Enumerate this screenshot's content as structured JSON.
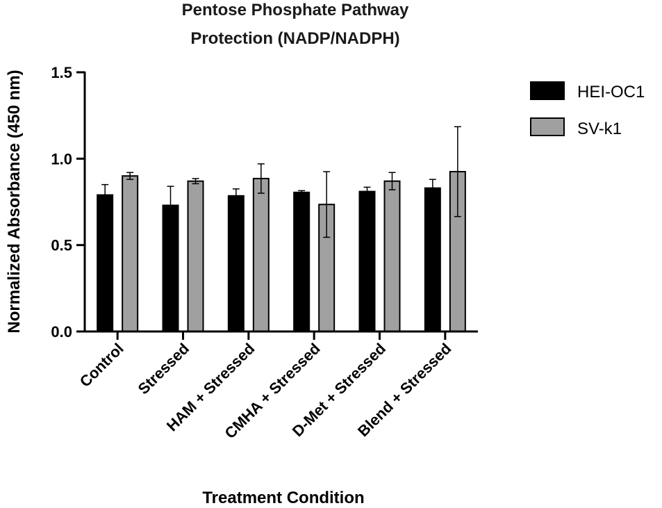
{
  "chart_data": {
    "type": "bar",
    "title": "Pentose Phosphate Pathway Protection (NADP/NADPH)",
    "title_lines": [
      "Pentose Phosphate Pathway",
      "Protection (NADP/NADPH)"
    ],
    "xlabel": "Treatment Condition",
    "ylabel": "Normalized Absorbance (450 nm)",
    "ylim": [
      0,
      1.5
    ],
    "yticks": [
      "0.0",
      "0.5",
      "1.0",
      "1.5"
    ],
    "ytick_values": [
      0,
      0.5,
      1.0,
      1.5
    ],
    "categories": [
      "Control",
      "Stressed",
      "HAM + Stressed",
      "CMHA + Stressed",
      "D-Met + Stressed",
      "Blend + Stressed"
    ],
    "series": [
      {
        "name": "HEI-OC1",
        "color": "#000000",
        "values": [
          0.79,
          0.73,
          0.785,
          0.805,
          0.81,
          0.83
        ],
        "errors": [
          0.06,
          0.11,
          0.04,
          0.01,
          0.025,
          0.05
        ]
      },
      {
        "name": "SV-k1",
        "color": "#a0a0a0",
        "values": [
          0.9,
          0.87,
          0.885,
          0.735,
          0.87,
          0.925
        ],
        "errors": [
          0.02,
          0.015,
          0.085,
          0.19,
          0.05,
          0.26
        ]
      }
    ],
    "legend_position": "top-right",
    "grid": false
  }
}
